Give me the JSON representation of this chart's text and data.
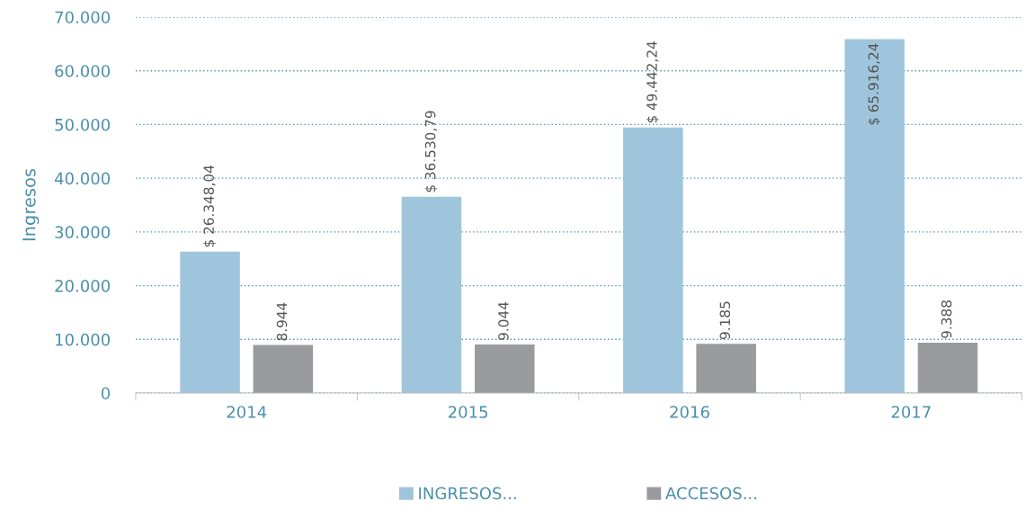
{
  "chart_data": {
    "type": "bar",
    "ylabel": "Ingresos",
    "categories": [
      "2014",
      "2015",
      "2016",
      "2017"
    ],
    "series": [
      {
        "name": "INGRESOS...",
        "color": "#9fc5dc",
        "values": [
          26348.04,
          36530.79,
          49442.24,
          65916.24
        ],
        "value_labels": [
          "$ 26.348,04",
          "$ 36.530,79",
          "$ 49.442,24",
          "$ 65.916,24"
        ]
      },
      {
        "name": "ACCESOS...",
        "color": "#999b9e",
        "values": [
          8944,
          9044,
          9185,
          9388
        ],
        "value_labels": [
          "8.944",
          "9.044",
          "9.185",
          "9.388"
        ]
      }
    ],
    "ylim": [
      0,
      70000
    ],
    "yticks": [
      {
        "value": 0,
        "label": "0"
      },
      {
        "value": 10000,
        "label": "10.000"
      },
      {
        "value": 20000,
        "label": "20.000"
      },
      {
        "value": 30000,
        "label": "30.000"
      },
      {
        "value": 40000,
        "label": "40.000"
      },
      {
        "value": 50000,
        "label": "50.000"
      },
      {
        "value": 60000,
        "label": "60.000"
      },
      {
        "value": 70000,
        "label": "70.000"
      }
    ],
    "grid": "y",
    "legend": "bottom"
  }
}
